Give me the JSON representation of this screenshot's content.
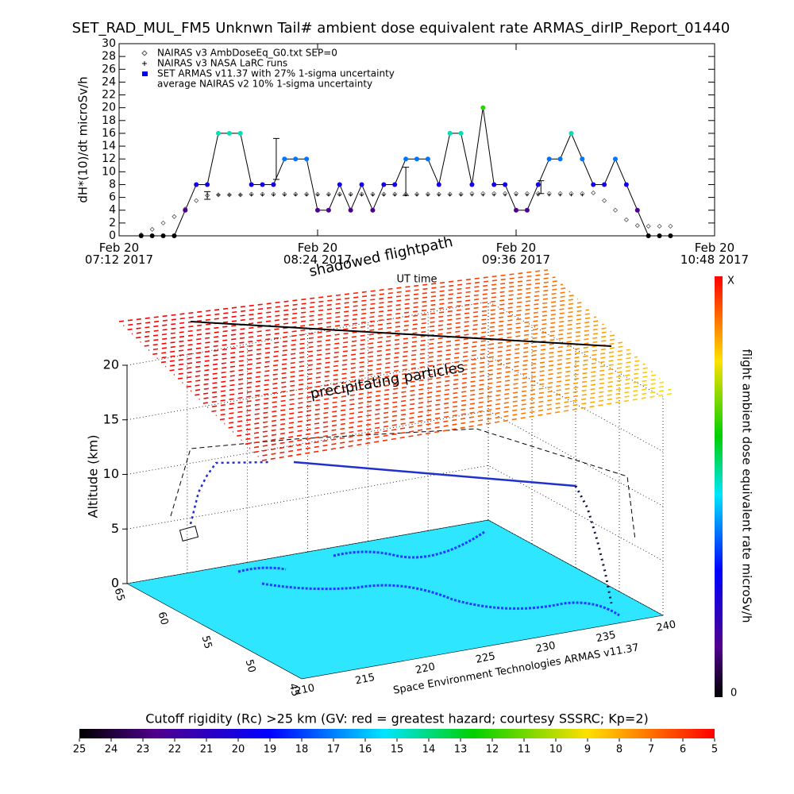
{
  "chart_data": [
    {
      "type": "line",
      "title": "SET_RAD_MUL_FM5 Unknwn Tail#  ambient dose equivalent rate ARMAS_dirIP_Report_01440",
      "ylabel": "dH*(10)/dt microSv/h",
      "xlabel": "UT time",
      "x": [
        440,
        444,
        448,
        452,
        456,
        460,
        464,
        468,
        472,
        476,
        480,
        484,
        488,
        492,
        496,
        500,
        504,
        508,
        512,
        516,
        520,
        524,
        528,
        532,
        536,
        540,
        544,
        548,
        552,
        556,
        560,
        564,
        568,
        572,
        576,
        580,
        584,
        588,
        592,
        596,
        600,
        604,
        608,
        612,
        616,
        620,
        624,
        628,
        632
      ],
      "xlim": [
        432,
        648
      ],
      "xticks": [
        {
          "value": 432,
          "label": "Feb 20\n07:12 2017"
        },
        {
          "value": 504,
          "label": "Feb 20\n08:24 2017"
        },
        {
          "value": 576,
          "label": "Feb 20\n09:36 2017"
        },
        {
          "value": 648,
          "label": "Feb 20\n10:48 2017"
        }
      ],
      "ylim": [
        0,
        30
      ],
      "yticks": [
        0,
        2,
        4,
        6,
        8,
        10,
        12,
        14,
        16,
        18,
        20,
        22,
        24,
        26,
        28,
        30
      ],
      "series": [
        {
          "name": "NAIRAS v3 AmbDoseEq_G0.txt SEP=0",
          "marker": "diamond",
          "color": "#555555",
          "values": [
            0.2,
            1,
            2,
            3,
            4.2,
            5.5,
            6.3,
            6.4,
            6.4,
            6.4,
            6.5,
            6.5,
            6.5,
            6.5,
            6.5,
            6.5,
            6.5,
            6.5,
            6.5,
            6.5,
            6.5,
            6.5,
            6.5,
            6.5,
            6.5,
            6.5,
            6.5,
            6.5,
            6.5,
            6.5,
            6.6,
            6.6,
            6.6,
            6.6,
            6.6,
            6.6,
            6.6,
            6.6,
            6.6,
            6.6,
            6.6,
            6.7,
            5.5,
            4,
            2.5,
            1.6,
            1.5,
            1.5,
            1.5
          ]
        },
        {
          "name": "NAIRAS v3 NASA LaRC runs",
          "marker": "plus",
          "color": "#000000",
          "values": [
            null,
            null,
            null,
            null,
            null,
            null,
            null,
            6.4,
            6.4,
            6.4,
            6.4,
            6.4,
            6.4,
            6.4,
            6.4,
            6.4,
            6.4,
            6.4,
            6.4,
            6.4,
            6.4,
            6.4,
            6.4,
            6.4,
            6.4,
            6.4,
            6.4,
            6.4,
            6.4,
            6.4,
            6.4,
            6.4,
            6.4,
            6.4,
            6.4,
            6.4,
            6.4,
            6.4,
            6.4,
            6.4,
            6.4,
            null,
            null,
            null,
            null,
            null,
            null,
            null,
            null
          ]
        },
        {
          "name": "SET ARMAS v11.37 with 27% 1-sigma uncertainty",
          "marker": "circle",
          "color": "#0000ff",
          "values": [
            0,
            0,
            0,
            0,
            4,
            8,
            8,
            16,
            16,
            16,
            8,
            8,
            8,
            12,
            12,
            12,
            4,
            4,
            8,
            4,
            8,
            4,
            8,
            8,
            12,
            12,
            12,
            8,
            16,
            16,
            8,
            20,
            8,
            8,
            4,
            4,
            8,
            12,
            12,
            16,
            12,
            8,
            8,
            12,
            8,
            4,
            0,
            0,
            0
          ]
        },
        {
          "name": "average NAIRAS v2 10% 1-sigma uncertainty",
          "marker": "errorbar",
          "color": "#000000",
          "x": [
            464,
            489,
            536,
            585
          ],
          "values": [
            6.3,
            12,
            8.5,
            7.6
          ],
          "errors": [
            0.6,
            3.2,
            2.2,
            1
          ]
        }
      ]
    },
    {
      "type": "surface3d",
      "annotations": [
        "shadowed flightpath",
        "precipitating particles"
      ],
      "zlabel": "Altitude (km)",
      "zlim": [
        0,
        20
      ],
      "zticks": [
        0,
        5,
        10,
        15,
        20
      ],
      "xlim": [
        210,
        240
      ],
      "xticks": [
        210,
        215,
        220,
        225,
        230,
        235,
        240
      ],
      "ylim": [
        45,
        65
      ],
      "yticks": [
        45,
        50,
        55,
        60,
        65
      ],
      "credit": "Space Environment Technologies ARMAS v11.37",
      "colorbar": {
        "label": "flight ambient dose equivalent rate microSv/h",
        "end_labels": [
          "0",
          "X"
        ]
      },
      "cutoff_colorbar": {
        "title": "Cutoff rigidity (Rc) >25 km (GV: red = greatest hazard; courtesy SSSRC; Kp=2)",
        "lim": [
          25,
          5
        ],
        "ticks": [
          25,
          24,
          23,
          22,
          21,
          20,
          19,
          18,
          17,
          16,
          15,
          14,
          13,
          12,
          11,
          10,
          9,
          8,
          7,
          6,
          5
        ]
      }
    }
  ]
}
